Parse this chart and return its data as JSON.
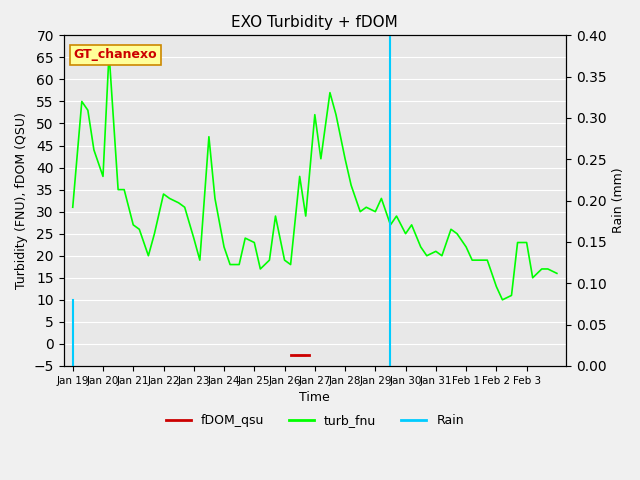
{
  "title": "EXO Turbidity + fDOM",
  "ylabel_left": "Turbidity (FNU), fDOM (QSU)",
  "ylabel_right": "Rain (mm)",
  "xlabel": "Time",
  "ylim_left": [
    -5,
    70
  ],
  "ylim_right": [
    0.0,
    0.4
  ],
  "yticks_left": [
    -5,
    0,
    5,
    10,
    15,
    20,
    25,
    30,
    35,
    40,
    45,
    50,
    55,
    60,
    65,
    70
  ],
  "yticks_right": [
    0.0,
    0.05,
    0.1,
    0.15,
    0.2,
    0.25,
    0.3,
    0.35,
    0.4
  ],
  "bg_color": "#e8e8e8",
  "plot_bg_color": "#e8e8e8",
  "turb_color": "#00ff00",
  "fdom_color": "#cc0000",
  "rain_color": "#00ccff",
  "annotation_box_color": "#ffff99",
  "annotation_text": "GT_chanexo",
  "annotation_text_color": "#cc0000",
  "legend_labels": [
    "fDOM_qsu",
    "turb_fnu",
    "Rain"
  ],
  "legend_colors": [
    "#cc0000",
    "#00ff00",
    "#00ccff"
  ],
  "turb_x": [
    0,
    0.3,
    0.5,
    0.7,
    1.0,
    1.2,
    1.5,
    1.7,
    2.0,
    2.2,
    2.5,
    2.7,
    3.0,
    3.2,
    3.5,
    3.7,
    4.0,
    4.2,
    4.5,
    4.7,
    5.0,
    5.2,
    5.5,
    5.7,
    6.0,
    6.2,
    6.5,
    6.7,
    7.0,
    7.2,
    7.5,
    7.7,
    8.0,
    8.2,
    8.5,
    8.7,
    9.0,
    9.2,
    9.5,
    9.7,
    10.0,
    10.2,
    10.5,
    10.7,
    11.0,
    11.2,
    11.5,
    11.7,
    12.0,
    12.2,
    12.5,
    12.7,
    13.0,
    13.2,
    13.5,
    13.7,
    14.0,
    14.2,
    14.5,
    14.7,
    15.0,
    15.2,
    15.5,
    15.7,
    16.0
  ],
  "turb_y": [
    31,
    55,
    53,
    44,
    38,
    66,
    35,
    35,
    27,
    26,
    20,
    25,
    34,
    33,
    32,
    31,
    24,
    19,
    47,
    33,
    22,
    18,
    18,
    24,
    23,
    17,
    19,
    29,
    19,
    18,
    38,
    29,
    52,
    42,
    57,
    52,
    42,
    36,
    30,
    31,
    30,
    33,
    27,
    29,
    25,
    27,
    22,
    20,
    21,
    20,
    26,
    25,
    22,
    19,
    19,
    19,
    13,
    10,
    11,
    23,
    23,
    15,
    17,
    17,
    16
  ],
  "rain_events": [
    {
      "x": 0,
      "height": 14
    },
    {
      "x": 10.5,
      "height": 70
    }
  ],
  "fdom_x": [
    7.5
  ],
  "fdom_y": [
    -2.5
  ],
  "xtick_positions": [
    0,
    1,
    2,
    3,
    4,
    5,
    6,
    7,
    8,
    9,
    10,
    11,
    12,
    13,
    14,
    15,
    16
  ],
  "xtick_labels": [
    "Jan 19",
    "Jan 20",
    "Jan 21",
    "Jan 22",
    "Jan 23",
    "Jan 24",
    "Jan 25",
    "Jan 26",
    "Jan 27",
    "Jan 28",
    "Jan 29",
    "Jan 30",
    "Jan 31",
    "Feb 1",
    "Feb 2",
    "Feb 3",
    ""
  ]
}
